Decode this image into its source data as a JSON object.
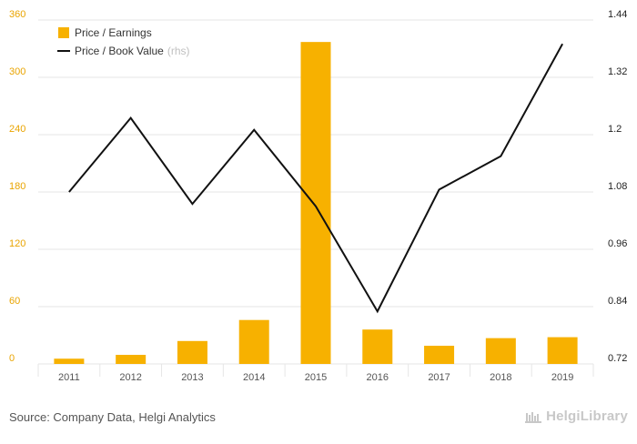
{
  "chart_data": {
    "type": "bar",
    "categories": [
      "2011",
      "2012",
      "2013",
      "2014",
      "2015",
      "2016",
      "2017",
      "2018",
      "2019"
    ],
    "series": [
      {
        "name": "Price / Earnings",
        "type": "bar",
        "axis": "left",
        "values": [
          5.5,
          9.5,
          24,
          46,
          337,
          36,
          19,
          27,
          28
        ]
      },
      {
        "name": "Price / Book Value",
        "name_suffix": "(rhs)",
        "type": "line",
        "axis": "right",
        "values": [
          1.08,
          1.235,
          1.055,
          1.21,
          1.05,
          0.83,
          1.085,
          1.155,
          1.39
        ]
      }
    ],
    "y_left": {
      "ticks": [
        "0",
        "60",
        "120",
        "180",
        "240",
        "300",
        "360"
      ],
      "range": [
        0,
        360
      ]
    },
    "y_right": {
      "ticks": [
        "0.72",
        "0.84",
        "0.96",
        "1.08",
        "1.2",
        "1.32",
        "1.44"
      ],
      "range": [
        0.72,
        1.44
      ]
    },
    "legend": "top-left",
    "grid": true
  },
  "colors": {
    "bar": "#F7B100",
    "line": "#111111",
    "left_tick": "#E9A400",
    "right_tick": "#222222",
    "grid": "#e6e6e6"
  },
  "footer": {
    "source": "Source: Company Data, Helgi Analytics",
    "brand": "HelgiLibrary"
  }
}
